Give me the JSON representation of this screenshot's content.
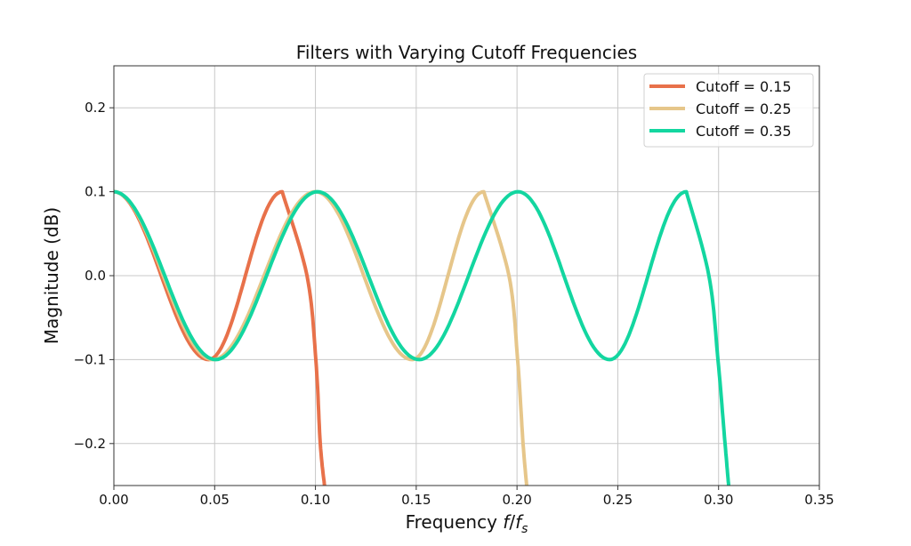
{
  "chart_data": {
    "type": "line",
    "title": "Filters with Varying Cutoff Frequencies",
    "xlabel": "Frequency f/f_s",
    "xlabel_parts": {
      "prefix": "Frequency ",
      "italic": "f",
      "slash": "/",
      "italic2": "f",
      "sub": "s"
    },
    "ylabel": "Magnitude (dB)",
    "xlim": [
      0.0,
      0.35
    ],
    "ylim": [
      -0.25,
      0.25
    ],
    "xticks": [
      0.0,
      0.05,
      0.1,
      0.15,
      0.2,
      0.25,
      0.3,
      0.35
    ],
    "xtick_labels": [
      "0.00",
      "0.05",
      "0.10",
      "0.15",
      "0.20",
      "0.25",
      "0.30",
      "0.35"
    ],
    "yticks": [
      -0.2,
      -0.1,
      0.0,
      0.1,
      0.2
    ],
    "ytick_labels": [
      "−0.2",
      "−0.1",
      "0.0",
      "0.1",
      "0.2"
    ],
    "grid": true,
    "legend_position": "upper right",
    "series": [
      {
        "name": "Cutoff = 0.15",
        "color": "#E8714A",
        "extrema": [
          [
            0.0,
            0.1
          ],
          [
            0.047,
            -0.1
          ],
          [
            0.0835,
            0.1
          ]
        ],
        "dropoff": [
          [
            0.0835,
            0.1
          ],
          [
            0.0958,
            0.0
          ],
          [
            0.1002,
            -0.1
          ],
          [
            0.1024,
            -0.2
          ],
          [
            0.1045,
            -0.25
          ]
        ]
      },
      {
        "name": "Cutoff = 0.25",
        "color": "#E6C68A",
        "extrema": [
          [
            0.0,
            0.1
          ],
          [
            0.049,
            -0.1
          ],
          [
            0.1,
            0.1
          ],
          [
            0.148,
            -0.1
          ],
          [
            0.1835,
            0.1
          ]
        ],
        "dropoff": [
          [
            0.1835,
            0.1
          ],
          [
            0.196,
            0.0
          ],
          [
            0.2003,
            -0.1
          ],
          [
            0.203,
            -0.2
          ],
          [
            0.2048,
            -0.25
          ]
        ]
      },
      {
        "name": "Cutoff = 0.35",
        "color": "#13D6A0",
        "extrema": [
          [
            0.0,
            0.1
          ],
          [
            0.0505,
            -0.1
          ],
          [
            0.101,
            0.1
          ],
          [
            0.1515,
            -0.1
          ],
          [
            0.2005,
            0.1
          ],
          [
            0.246,
            -0.1
          ],
          [
            0.284,
            0.1
          ]
        ],
        "dropoff": [
          [
            0.284,
            0.1
          ],
          [
            0.2952,
            0.0
          ],
          [
            0.2997,
            -0.1
          ],
          [
            0.3032,
            -0.2
          ],
          [
            0.305,
            -0.25
          ]
        ]
      }
    ]
  }
}
